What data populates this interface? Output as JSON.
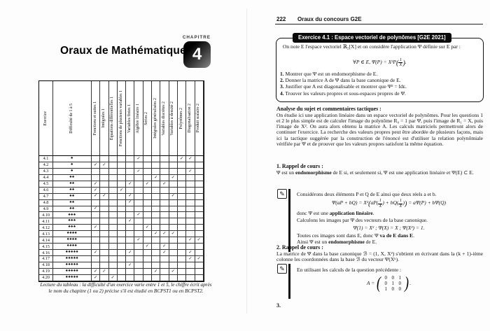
{
  "left_page": {
    "title": "Oraux de Mathématiques",
    "chapter_label": "CHAPITRE",
    "chapter_number": "4",
    "table": {
      "corner_label": "Exercice",
      "difficulty_header": "Difficulté de 1 à 5",
      "difficulty_glyph": "♠",
      "check_glyph": "✓",
      "topic_headers": [
        "Fonctions et suites 1",
        "Intégrales 1",
        "Équations différentielles 1",
        "Fonctions de plusieurs variables 1",
        "Variables finies 1",
        "Algèbre linéaire 1",
        "Séries 2",
        "Intégrales généralisées 2",
        "Variables discrètes 2",
        "Variables à densité 2",
        "Polynômes 2",
        "Diagonalisation 2",
        "Produit scalaire 2"
      ],
      "rows": [
        {
          "exercise": "4.1",
          "difficulty": 1,
          "checks": [
            6,
            11,
            12
          ]
        },
        {
          "exercise": "4.2",
          "difficulty": 1,
          "checks": [
            1,
            2
          ]
        },
        {
          "exercise": "4.3",
          "difficulty": 1,
          "checks": [
            6,
            12
          ]
        },
        {
          "exercise": "4.4",
          "difficulty": 2,
          "checks": [
            8,
            10
          ]
        },
        {
          "exercise": "4.5",
          "difficulty": 2,
          "checks": [
            1,
            5,
            7,
            9
          ]
        },
        {
          "exercise": "4.6",
          "difficulty": 2,
          "checks": [
            1,
            4
          ]
        },
        {
          "exercise": "4.7",
          "difficulty": 2,
          "checks": [
            1,
            2,
            5,
            10
          ]
        },
        {
          "exercise": "4.8",
          "difficulty": 2,
          "checks": [
            5
          ]
        },
        {
          "exercise": "4.9",
          "difficulty": 2,
          "checks": [
            1
          ]
        },
        {
          "exercise": "4.10",
          "difficulty": 3,
          "checks": [
            6
          ]
        },
        {
          "exercise": "4.11",
          "difficulty": 3,
          "checks": [
            5
          ]
        },
        {
          "exercise": "4.12",
          "difficulty": 3,
          "checks": [
            1,
            7
          ]
        },
        {
          "exercise": "4.13",
          "difficulty": 4,
          "checks": [
            8,
            9,
            10
          ]
        },
        {
          "exercise": "4.14",
          "difficulty": 4,
          "checks": [
            6,
            12,
            13
          ]
        },
        {
          "exercise": "4.15",
          "difficulty": 4,
          "checks": [
            7,
            9
          ]
        },
        {
          "exercise": "4.16",
          "difficulty": 5,
          "checks": [
            1,
            5,
            9,
            12
          ]
        },
        {
          "exercise": "4.17",
          "difficulty": 5,
          "checks": [
            12,
            13
          ]
        },
        {
          "exercise": "4.18",
          "difficulty": 5,
          "checks": [
            5
          ]
        },
        {
          "exercise": "4.19",
          "difficulty": 5,
          "checks": [
            1,
            2,
            8,
            10
          ]
        },
        {
          "exercise": "4.20",
          "difficulty": 5,
          "checks": [
            1,
            3
          ]
        }
      ]
    },
    "caption_line1": "Lecture du tableau : la difficulté d'un exercice varie entre 1 et 5, le chiffre écrit après",
    "caption_line2": "le nom du chapitre (1 ou 2) précise s'il est étudié en BCPST1 ou en BCPST2."
  },
  "right_page": {
    "page_number": "222",
    "running_header": "Oraux du concours G2E",
    "exercise_box": {
      "title": "Exercice 4.1 : Espace vectoriel de polynômes [G2E 2021]",
      "intro": "On note E l'espace vectoriel ℝ₂[X] et on considère l'application Ψ définie sur E par :",
      "formula_pre": "∀P ∈ E,    Ψ(P) = X²P",
      "formula_num": "1",
      "formula_den": "X",
      "formula_end": ".",
      "items": [
        {
          "num": "1.",
          "text": "Montrer que Ψ est un endomorphisme de E."
        },
        {
          "num": "2.",
          "text": "Donner la matrice A de Ψ dans la base canonique de E."
        },
        {
          "num": "3.",
          "text": "Justifier que A est diagonalisable et montrer que Ψ² = Idᴇ."
        },
        {
          "num": "4.",
          "text": "Trouver les valeurs propres et sous-espaces propres de Ψ."
        }
      ]
    },
    "analysis": {
      "heading": "Analyse du sujet et commentaires tactiques :",
      "body": "On étudie ici une application linéaire dans un espace vectoriel de polynômes. Pour les questions 1 et 2 le plus simple est de calculer l'image du polynôme R₀ = 1 par Ψ, puis l'image de R₁ = X, puis l'image de X². On aura alors obtenu la matrice A. Les calculs matriciels permettront alors de continuer l'exercice. La recherche des valeurs propres peut être abordée de plusieurs façons, mais ici la tactique suggérée par la construction de l'énoncé est d'utiliser la relation polynômiale vérifiée par Ψ et de prouver que les valeurs propres satisfont la même équation."
    },
    "rappel1": {
      "heading": "1. Rappel de cours :",
      "body_pre": "Ψ est un ",
      "body_bold": "endomorphisme",
      "body_post": " de E si, et seulement si, Ψ est une application linéaire et Ψ(E) ⊂ E."
    },
    "note1": {
      "line1": "Considérons deux éléments P et Q de E ainsi que deux réels a et b.",
      "linearity_p1": "Ψ(aP + bQ) = X²",
      "linearity_lp": "(",
      "linearity_s1": "aP(",
      "linearity_n1": "1",
      "linearity_d1": "X",
      "linearity_p2": ") + bQ(",
      "linearity_n2": "1",
      "linearity_d2": "X",
      "linearity_p3": ")",
      "linearity_rp": ")",
      "linearity_p4": " = aΨ(P) + bΨ(Q)",
      "donc_pre": "donc Ψ est une ",
      "donc_bold": "application linéaire",
      "donc_post": ".",
      "calculons": "Calculons les images par Ψ des vecteurs de la base canonique.",
      "images_formula": "Ψ(1) = X²   ;   Ψ(X) = X   ;   Ψ(X²) = 1.",
      "toutes_pre": "Toutes ces images sont dans E, donc Ψ ",
      "toutes_bold": "va de E dans E",
      "toutes_post": ".",
      "ainsi_pre": "Ainsi Ψ est un ",
      "ainsi_bold": "endomorphisme",
      "ainsi_post": " de E."
    },
    "rappel2": {
      "heading": "2. Rappel de cours :",
      "body": "La matrice de Ψ dans la base canonique ℬ = (1, X, X²) s'obtient en écrivant dans la (k + 1)-ième colonne les coordonnées dans la base ℬ du vecteur Ψ(Xᵏ)."
    },
    "note2": {
      "line1": "En utilisant les calculs de la question précédente :",
      "matrix_prefix": "A =",
      "matrix_rows": [
        [
          "0",
          "0",
          "1"
        ],
        [
          "0",
          "1",
          "0"
        ],
        [
          "1",
          "0",
          "0"
        ]
      ],
      "matrix_suffix": "."
    },
    "footer_marker": "3."
  }
}
